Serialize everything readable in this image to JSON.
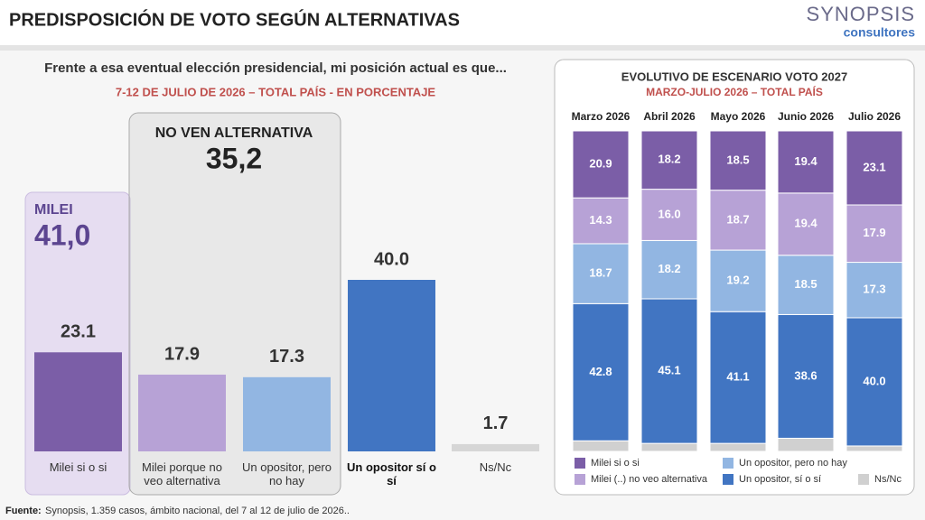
{
  "title": "PREDISPOSICIÓN DE VOTO SEGÚN ALTERNATIVAS",
  "logo": {
    "name": "SYNOPSIS",
    "tagline": "consultores"
  },
  "source": {
    "label": "Fuente:",
    "text": "Synopsis, 1.359 casos, ámbito nacional, del 7 al 12 de julio de 2026.."
  },
  "chart_data": [
    {
      "type": "bar",
      "title": "Frente a esa eventual elección presidencial, mi posición actual es que...",
      "subtitle": "7-12 DE JULIO DE 2026 – TOTAL PAÍS - EN PORCENTAJE",
      "categories": [
        "Milei si o si",
        "Milei porque no veo alternativa",
        "Un opositor, pero no hay",
        "Un opositor sí o sí",
        "Ns/Nc"
      ],
      "values": [
        23.1,
        17.9,
        17.3,
        40.0,
        1.7
      ],
      "value_labels": [
        "23.1",
        "17.9",
        "17.3",
        "40.0",
        "1.7"
      ],
      "colors": [
        "#7b5ea7",
        "#b7a2d6",
        "#92b6e2",
        "#4175c2",
        "#d6d6d6"
      ],
      "annotations": [
        {
          "label": "MILEI",
          "value_label": "41,0"
        },
        {
          "label": "NO VEN ALTERNATIVA",
          "value_label": "35,2"
        }
      ]
    },
    {
      "type": "stacked-bar",
      "title": "EVOLUTIVO DE ESCENARIO VOTO 2027",
      "subtitle": "MARZO-JULIO 2026 – TOTAL PAÍS",
      "categories": [
        "Marzo 2026",
        "Abril 2026",
        "Mayo 2026",
        "Junio 2026",
        "Julio 2026"
      ],
      "series": [
        {
          "name": "Ns/Nc",
          "color": "#d0d0d0",
          "values": [
            3.3,
            2.5,
            2.5,
            4.1,
            1.7
          ]
        },
        {
          "name": "Un opositor, sí o sí",
          "color": "#4175c2",
          "values": [
            42.8,
            45.1,
            41.1,
            38.6,
            40.0
          ],
          "value_labels": [
            "42.8",
            "45.1",
            "41.1",
            "38.6",
            "40.0"
          ]
        },
        {
          "name": "Un opositor, pero no hay",
          "color": "#92b6e2",
          "values": [
            18.7,
            18.2,
            19.2,
            18.5,
            17.3
          ],
          "value_labels": [
            "18.7",
            "18.2",
            "19.2",
            "18.5",
            "17.3"
          ]
        },
        {
          "name": "Milei (..) no veo alternativa",
          "color": "#b7a2d6",
          "values": [
            14.3,
            16.0,
            18.7,
            19.4,
            17.9
          ],
          "value_labels": [
            "14.3",
            "16.0",
            "18.7",
            "19.4",
            "17.9"
          ]
        },
        {
          "name": "Milei si o si",
          "color": "#7b5ea7",
          "values": [
            20.9,
            18.2,
            18.5,
            19.4,
            23.1
          ],
          "value_labels": [
            "20.9",
            "18.2",
            "18.5",
            "19.4",
            "23.1"
          ]
        }
      ]
    }
  ]
}
